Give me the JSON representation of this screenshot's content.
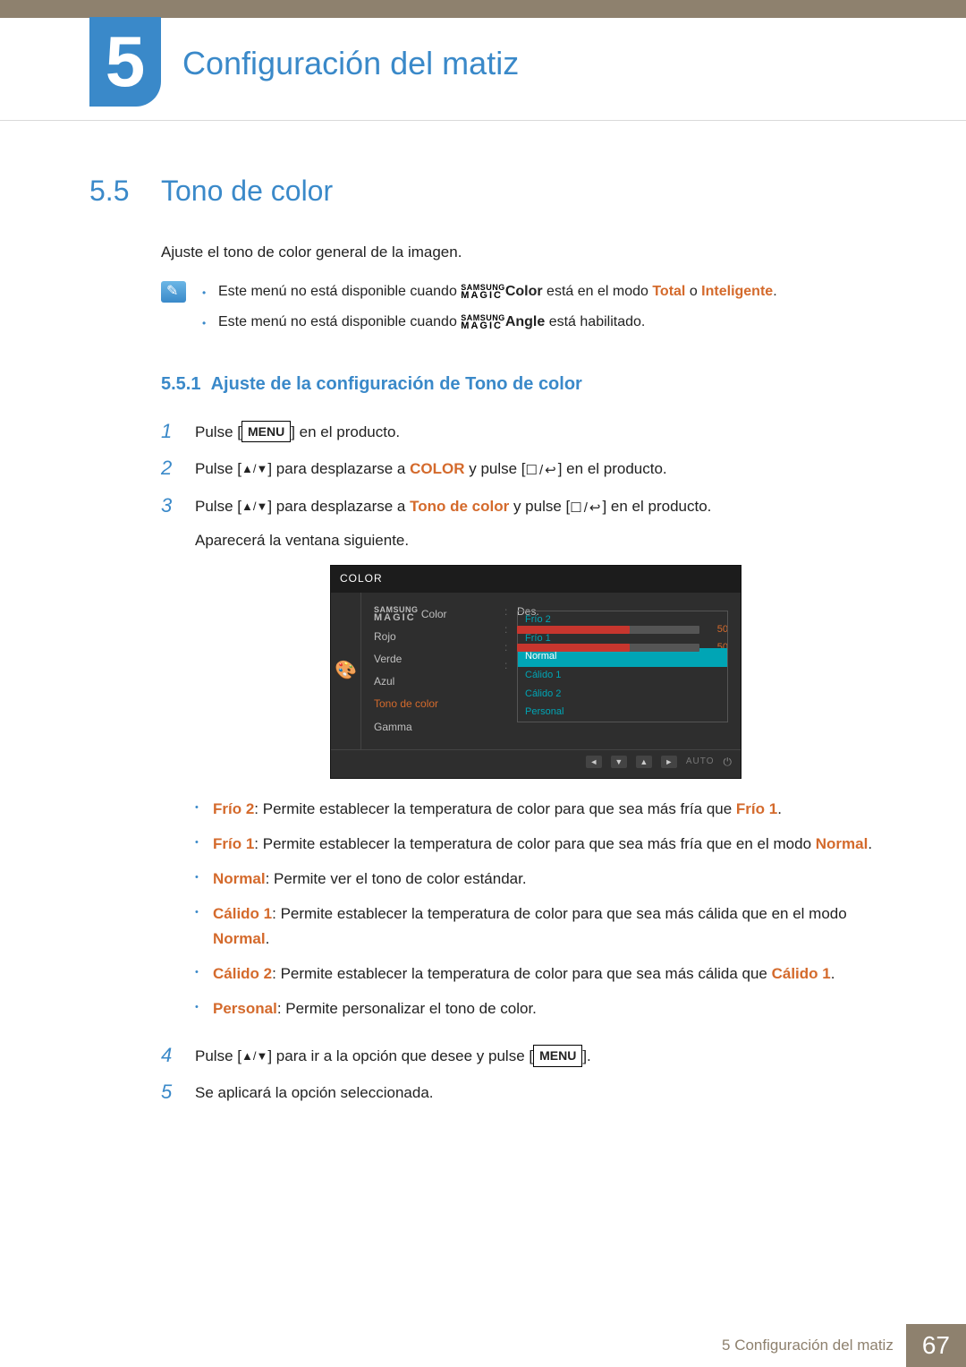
{
  "header": {
    "chapter_num": "5",
    "chapter_title": "Configuración del matiz"
  },
  "section": {
    "num": "5.5",
    "title": "Tono de color",
    "intro": "Ajuste el tono de color general de la imagen."
  },
  "brand": {
    "top": "SAMSUNG",
    "bot": "MAGIC"
  },
  "notes": {
    "n1": {
      "pre": "Este menú no está disponible cuando ",
      "feature": "Color",
      "mid": " está en el modo ",
      "k1": "Total",
      "or": " o ",
      "k2": "Inteligente",
      "post": "."
    },
    "n2": {
      "pre": "Este menú no está disponible cuando ",
      "feature": "Angle",
      "post": " está habilitado."
    }
  },
  "subsection": {
    "num": "5.5.1",
    "title": "Ajuste de la configuración de Tono de color"
  },
  "steps": {
    "s1": {
      "pre": "Pulse [",
      "btn": "MENU",
      "post": "] en el producto."
    },
    "s2": {
      "pre": "Pulse [",
      "arrows": "▲/▼",
      "mid1": "] para desplazarse a ",
      "kw": "COLOR",
      "mid2": " y pulse [",
      "icons": "☐/↩",
      "post": "] en el producto."
    },
    "s3": {
      "pre": "Pulse [",
      "arrows": "▲/▼",
      "mid1": "] para desplazarse a ",
      "kw": "Tono de color",
      "mid2": " y pulse [",
      "icons": "☐/↩",
      "post": "] en el producto.",
      "after": "Aparecerá la ventana siguiente."
    },
    "s4": {
      "pre": "Pulse [",
      "arrows": "▲/▼",
      "mid": "] para ir a la opción que desee y pulse [",
      "btn": "MENU",
      "post": "]."
    },
    "s5": {
      "text": "Se aplicará la opción seleccionada."
    }
  },
  "osd": {
    "title": "COLOR",
    "colors": {
      "bg": "#2e2e2e",
      "accent": "#d46a2c",
      "teal": "#00a5b5",
      "red_fill": "#c7362e",
      "green_fill": "#c7362e",
      "track": "#555555"
    },
    "labels": {
      "magic_color": "Color",
      "magic_val": "Des.",
      "rojo": "Rojo",
      "rojo_val": "50",
      "rojo_fill_pct": 62,
      "verde": "Verde",
      "verde_val": "50",
      "verde_fill_pct": 62,
      "azul": "Azul",
      "tono": "Tono de color",
      "gamma": "Gamma"
    },
    "dropdown": [
      "Frío 2",
      "Frío 1",
      "Normal",
      "Cálido 1",
      "Cálido 2",
      "Personal"
    ],
    "dropdown_selected_index": 2,
    "footer_auto": "AUTO"
  },
  "options": {
    "o1": {
      "k": "Frío 2",
      "t": ": Permite establecer la temperatura de color para que sea más fría que ",
      "k2": "Frío 1",
      "post": "."
    },
    "o2": {
      "k": "Frío 1",
      "t": ": Permite establecer la temperatura de color para que sea más fría que en el modo ",
      "k2": "Normal",
      "post": "."
    },
    "o3": {
      "k": "Normal",
      "t": ": Permite ver el tono de color estándar."
    },
    "o4": {
      "k": "Cálido 1",
      "t": ": Permite establecer la temperatura de color para que sea más cálida que en el modo ",
      "k2": "Normal",
      "post": "."
    },
    "o5": {
      "k": "Cálido 2",
      "t": ": Permite establecer la temperatura de color para que sea más cálida que ",
      "k2": "Cálido 1",
      "post": "."
    },
    "o6": {
      "k": "Personal",
      "t": ": Permite personalizar el tono de color."
    }
  },
  "footer": {
    "chapter_ref_num": "5",
    "chapter_ref_title": "Configuración del matiz",
    "page_num": "67"
  }
}
